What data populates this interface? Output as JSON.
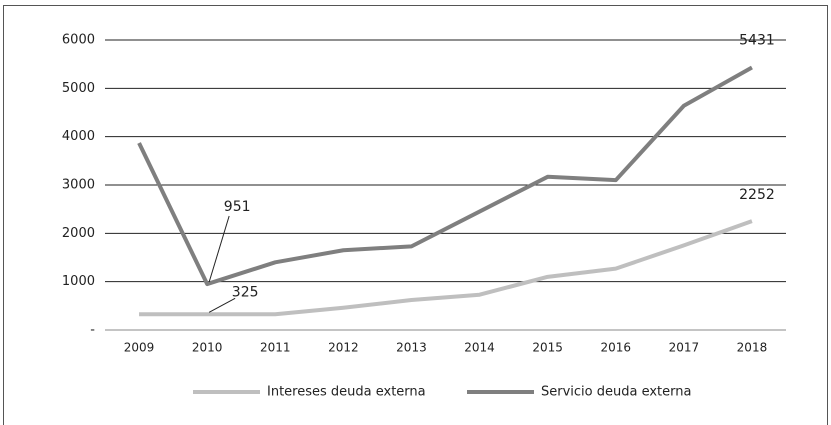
{
  "chart_data": {
    "type": "line",
    "categories": [
      "2009",
      "2010",
      "2011",
      "2012",
      "2013",
      "2014",
      "2015",
      "2016",
      "2017",
      "2018"
    ],
    "series": [
      {
        "name": "Intereses deuda externa",
        "color": "#bfbfbf",
        "values": [
          325,
          325,
          325,
          460,
          620,
          730,
          1100,
          1270,
          1750,
          2252
        ]
      },
      {
        "name": "Servicio deuda externa",
        "color": "#7f7f7f",
        "values": [
          3870,
          951,
          1400,
          1650,
          1730,
          2450,
          3170,
          3100,
          4640,
          5431
        ]
      }
    ],
    "ylim": [
      0,
      6000
    ],
    "yticks": [
      {
        "value": 0,
        "label": "-"
      },
      1000,
      2000,
      3000,
      4000,
      5000,
      6000
    ],
    "grid": true,
    "legend": "bottom"
  }
}
